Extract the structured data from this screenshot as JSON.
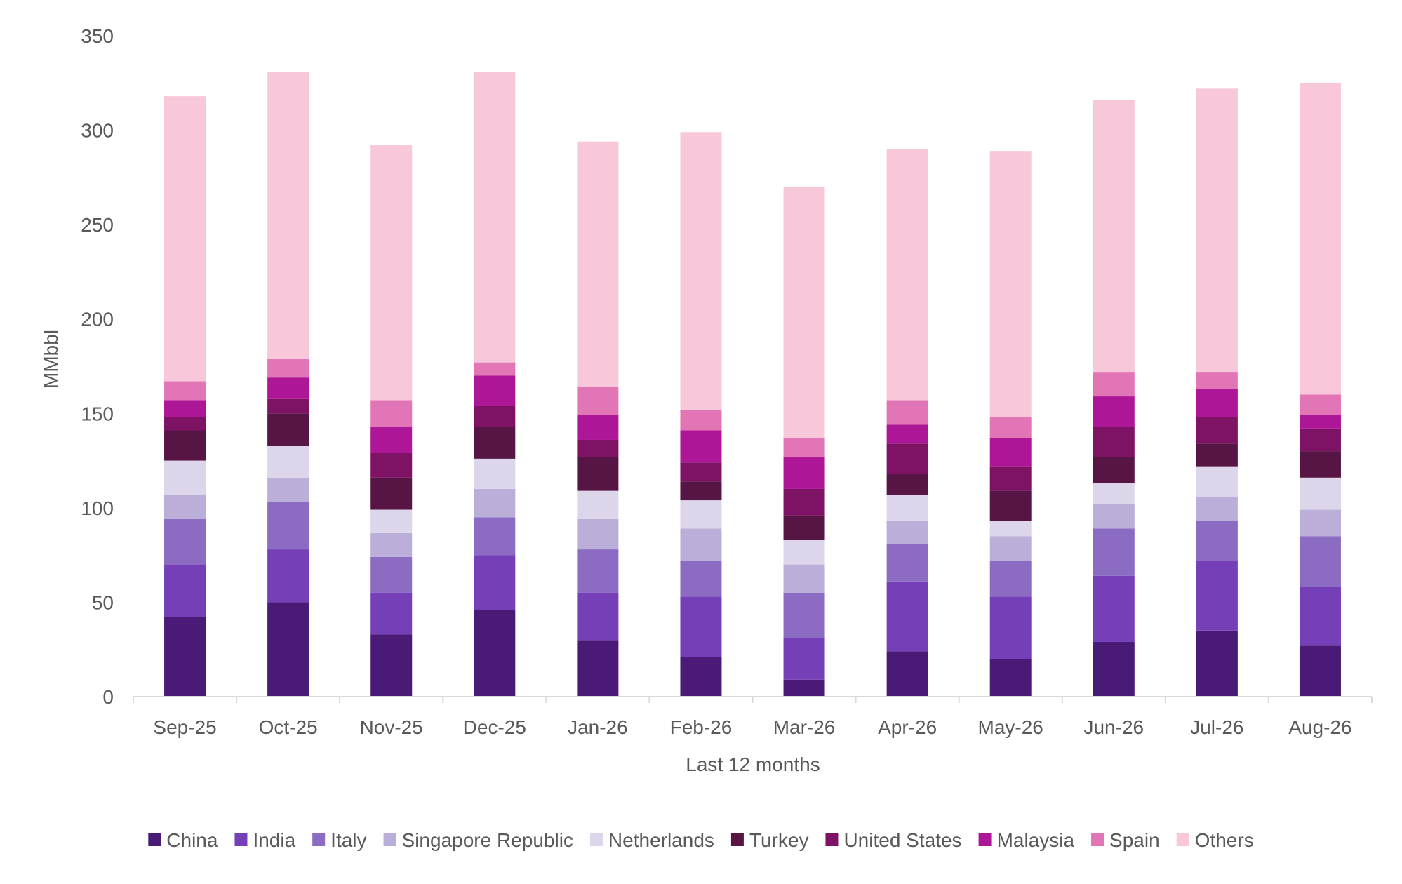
{
  "chart_data": {
    "type": "bar",
    "stacked": true,
    "title": "",
    "xlabel": "Last 12 months",
    "ylabel": "MMbbl",
    "ylim": [
      0,
      350
    ],
    "yticks": [
      0,
      50,
      100,
      150,
      200,
      250,
      300,
      350
    ],
    "grid": false,
    "legend_position": "bottom",
    "categories": [
      "Sep-25",
      "Oct-25",
      "Nov-25",
      "Dec-25",
      "Jan-26",
      "Feb-26",
      "Mar-26",
      "Apr-26",
      "May-26",
      "Jun-26",
      "Jul-26",
      "Aug-26"
    ],
    "series": [
      {
        "name": "China",
        "color": "#4a1a77",
        "values": [
          42,
          50,
          33,
          46,
          30,
          21,
          9,
          24,
          20,
          29,
          35,
          27
        ]
      },
      {
        "name": "India",
        "color": "#7540b7",
        "values": [
          28,
          28,
          22,
          29,
          25,
          32,
          22,
          37,
          33,
          35,
          37,
          31
        ]
      },
      {
        "name": "Italy",
        "color": "#8b6cc2",
        "values": [
          24,
          25,
          19,
          20,
          23,
          19,
          24,
          20,
          19,
          25,
          21,
          27
        ]
      },
      {
        "name": "Singapore Republic",
        "color": "#bbaed8",
        "values": [
          13,
          13,
          13,
          15,
          16,
          17,
          15,
          12,
          13,
          13,
          13,
          14
        ]
      },
      {
        "name": "Netherlands",
        "color": "#ddd6ea",
        "values": [
          18,
          17,
          12,
          16,
          15,
          15,
          13,
          14,
          8,
          11,
          16,
          17
        ]
      },
      {
        "name": "Turkey",
        "color": "#561544",
        "values": [
          16,
          17,
          17,
          17,
          18,
          10,
          13,
          11,
          16,
          14,
          12,
          14
        ]
      },
      {
        "name": "United States",
        "color": "#7e1264",
        "values": [
          7,
          8,
          13,
          11,
          9,
          10,
          14,
          16,
          13,
          16,
          14,
          12
        ]
      },
      {
        "name": "Malaysia",
        "color": "#ad1696",
        "values": [
          9,
          11,
          14,
          16,
          13,
          17,
          17,
          10,
          15,
          16,
          15,
          7
        ]
      },
      {
        "name": "Spain",
        "color": "#e275b5",
        "values": [
          10,
          10,
          14,
          7,
          15,
          11,
          10,
          13,
          11,
          13,
          9,
          11
        ]
      },
      {
        "name": "Others",
        "color": "#f8c8da",
        "values": [
          151,
          152,
          135,
          154,
          130,
          147,
          133,
          133,
          141,
          144,
          150,
          165
        ]
      }
    ]
  }
}
